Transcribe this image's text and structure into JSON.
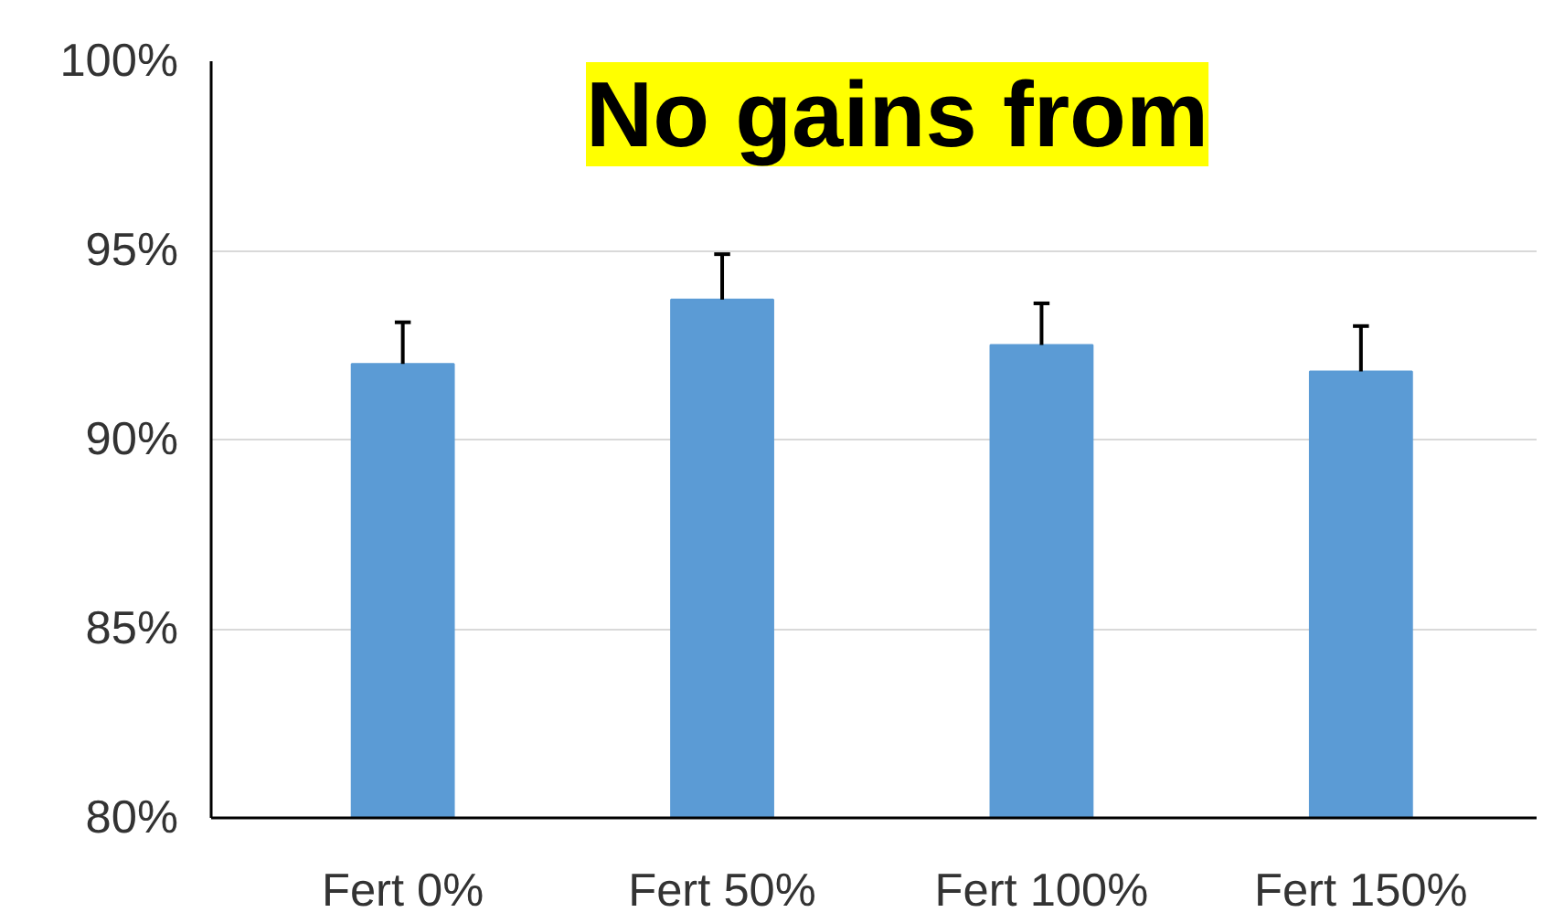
{
  "chart_data": {
    "type": "bar",
    "categories": [
      "Fert 0%",
      "Fert 50%",
      "Fert 100%",
      "Fert 150%"
    ],
    "values": [
      92.0,
      93.7,
      92.5,
      91.8
    ],
    "errors": [
      [
        92.0,
        93.1
      ],
      [
        93.7,
        94.9
      ],
      [
        92.5,
        93.6
      ],
      [
        91.8,
        93.0
      ]
    ],
    "color": "#5b9bd5",
    "ylim": [
      80,
      100
    ],
    "yticks": [
      {
        "value": 80,
        "label": "80%"
      },
      {
        "value": 85,
        "label": "85%"
      },
      {
        "value": 90,
        "label": "90%"
      },
      {
        "value": 95,
        "label": "95%"
      },
      {
        "value": 100,
        "label": "100%"
      }
    ],
    "grid": "y",
    "annotations": [
      "No gains from"
    ]
  }
}
